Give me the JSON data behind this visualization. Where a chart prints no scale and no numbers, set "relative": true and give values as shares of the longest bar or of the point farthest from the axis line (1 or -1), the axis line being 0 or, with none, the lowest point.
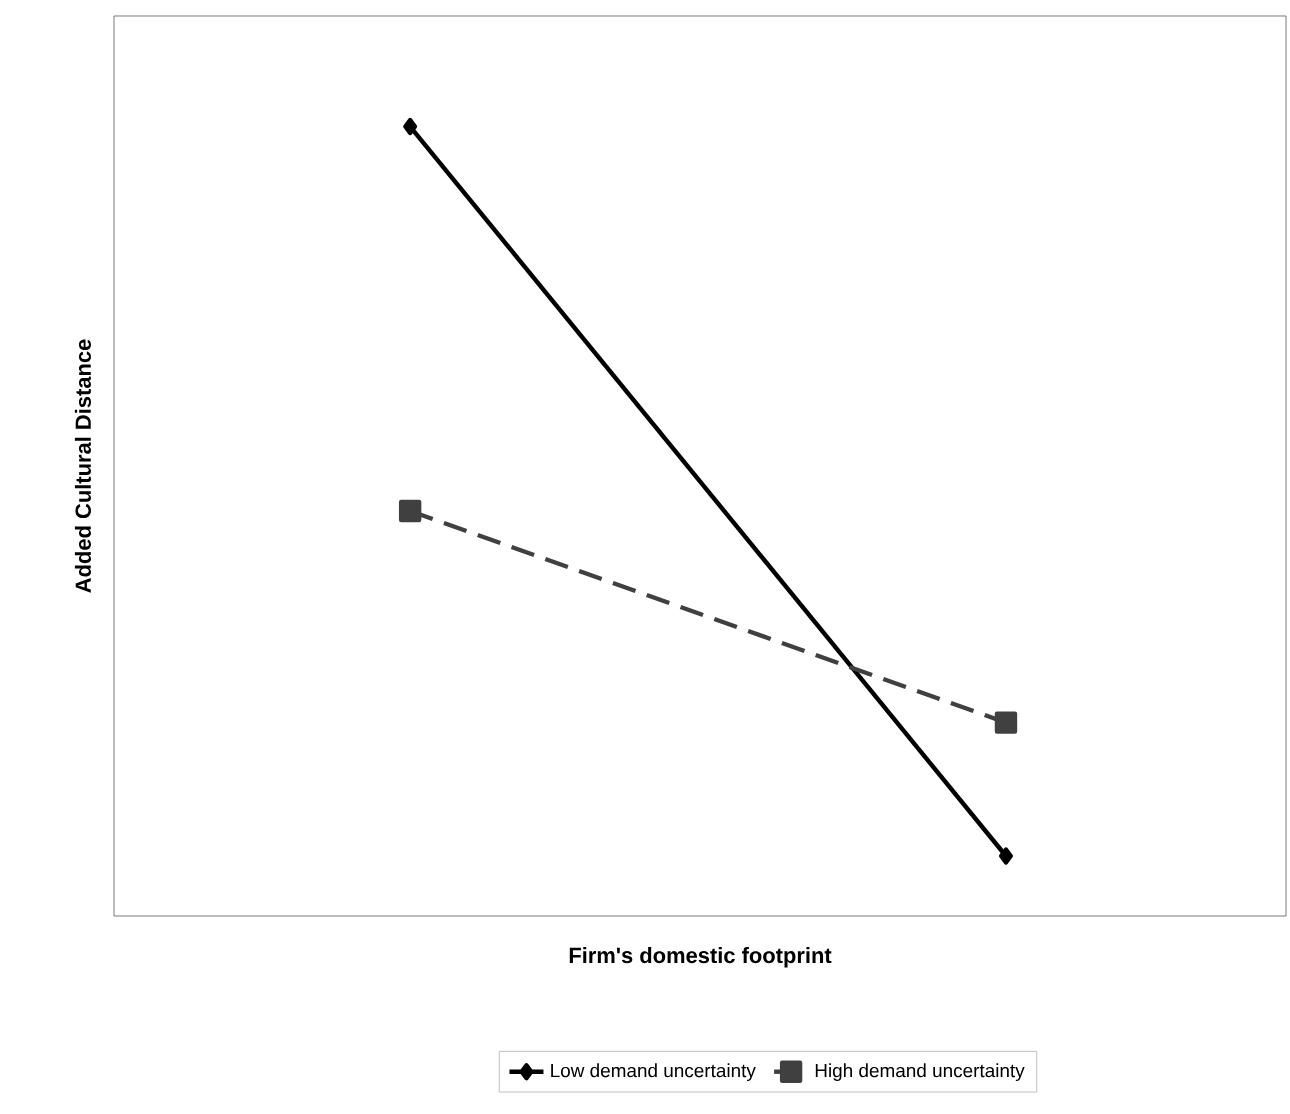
{
  "chart_data": {
    "type": "line",
    "xlabel": "Firm's domestic footprint",
    "ylabel": "Added Cultural Distance",
    "relative": true,
    "categories": [
      null,
      null
    ],
    "series": [
      {
        "name": "Low demand uncertainty",
        "color": "#000000",
        "values": [
          1,
          0.076
        ],
        "marker": "diamond",
        "line_style": "solid"
      },
      {
        "name": "High demand uncertainty",
        "color": "#404040",
        "values": [
          0.513,
          0.245
        ],
        "marker": "square",
        "line_style": "dashed"
      }
    ],
    "legend": "bottom"
  }
}
